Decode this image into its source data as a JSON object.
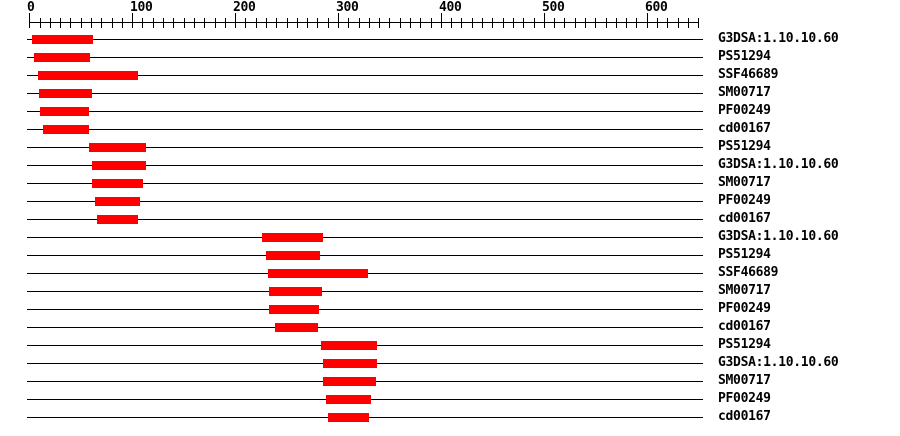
{
  "colors": {
    "background": "#ffffff",
    "bar": "#ff0000",
    "line": "#000000",
    "text": "#000000"
  },
  "chart_data": {
    "type": "bar",
    "orientation": "horizontal",
    "title": "",
    "xlabel": "",
    "ylabel": "",
    "axis": {
      "min": 0,
      "max": 650,
      "minor_tick_step": 10,
      "major_tick_step": 100,
      "tick_labels": [
        "0",
        "100",
        "200",
        "300",
        "400",
        "500",
        "600"
      ],
      "position": "top",
      "grid": false
    },
    "legend": null,
    "tracks": [
      {
        "label": "G3DSA:1.10.10.60",
        "start": 3,
        "end": 62
      },
      {
        "label": "PS51294",
        "start": 5,
        "end": 59
      },
      {
        "label": "SSF46689",
        "start": 8,
        "end": 106
      },
      {
        "label": "SM00717",
        "start": 9,
        "end": 61
      },
      {
        "label": "PF00249",
        "start": 10,
        "end": 58
      },
      {
        "label": "cd00167",
        "start": 13,
        "end": 58
      },
      {
        "label": "PS51294",
        "start": 58,
        "end": 113
      },
      {
        "label": "G3DSA:1.10.10.60",
        "start": 61,
        "end": 113
      },
      {
        "label": "SM00717",
        "start": 61,
        "end": 111
      },
      {
        "label": "PF00249",
        "start": 64,
        "end": 108
      },
      {
        "label": "cd00167",
        "start": 66,
        "end": 106
      },
      {
        "label": "G3DSA:1.10.10.60",
        "start": 226,
        "end": 285
      },
      {
        "label": "PS51294",
        "start": 230,
        "end": 282
      },
      {
        "label": "SSF46689",
        "start": 232,
        "end": 329
      },
      {
        "label": "SM00717",
        "start": 233,
        "end": 284
      },
      {
        "label": "PF00249",
        "start": 233,
        "end": 282
      },
      {
        "label": "cd00167",
        "start": 239,
        "end": 281
      },
      {
        "label": "PS51294",
        "start": 283,
        "end": 338
      },
      {
        "label": "G3DSA:1.10.10.60",
        "start": 285,
        "end": 338
      },
      {
        "label": "SM00717",
        "start": 285,
        "end": 337
      },
      {
        "label": "PF00249",
        "start": 288,
        "end": 332
      },
      {
        "label": "cd00167",
        "start": 290,
        "end": 330
      }
    ]
  }
}
